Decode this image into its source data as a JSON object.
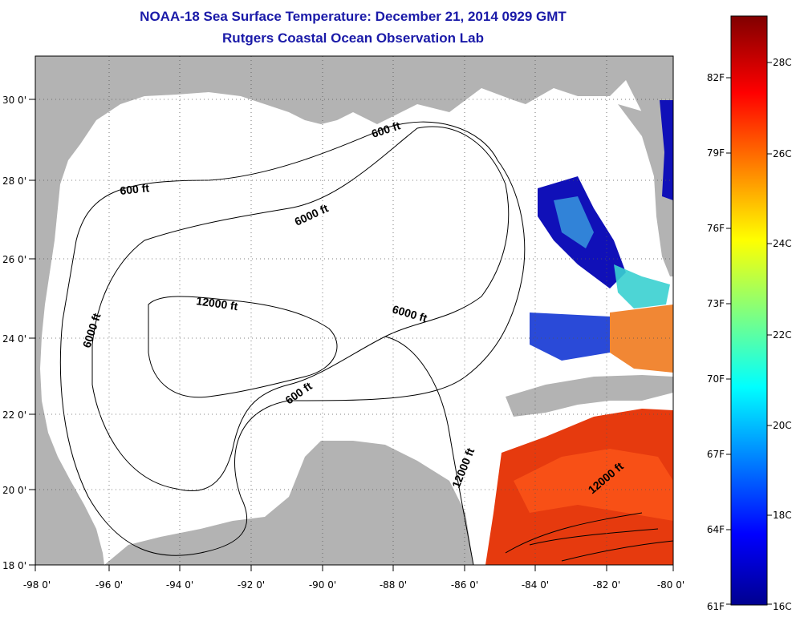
{
  "title": "NOAA-18 Sea Surface Temperature:  December 21, 2014 0929 GMT",
  "subtitle": "Rutgers Coastal Ocean Observation Lab",
  "map": {
    "lon_range": [
      -98,
      -80
    ],
    "lat_range": [
      18,
      31
    ],
    "lon_ticks": [
      "-98 0'",
      "-96 0'",
      "-94 0'",
      "-92 0'",
      "-90 0'",
      "-88 0'",
      "-86 0'",
      "-84 0'",
      "-82 0'",
      "-80 0'"
    ],
    "lat_ticks": [
      "18 0'",
      "20 0'",
      "22 0'",
      "24 0'",
      "26 0'",
      "28 0'",
      "30 0'"
    ],
    "land_color": "#b3b3b3",
    "water_color": "#ffffff",
    "grid": "dotted"
  },
  "contour_labels": [
    {
      "text": "600 ft"
    },
    {
      "text": "600 ft"
    },
    {
      "text": "600 ft"
    },
    {
      "text": "6000 ft"
    },
    {
      "text": "6000 ft"
    },
    {
      "text": "6000 ft"
    },
    {
      "text": "12000 ft"
    },
    {
      "text": "12000 ft"
    },
    {
      "text": "12000 ft"
    }
  ],
  "colorbar": {
    "range_c": [
      16,
      29.5
    ],
    "celsius_labels": [
      "28C",
      "26C",
      "24C",
      "22C",
      "20C",
      "18C",
      "16C"
    ],
    "fahrenheit_labels": [
      "82F",
      "79F",
      "76F",
      "73F",
      "70F",
      "67F",
      "64F",
      "61F"
    ]
  }
}
